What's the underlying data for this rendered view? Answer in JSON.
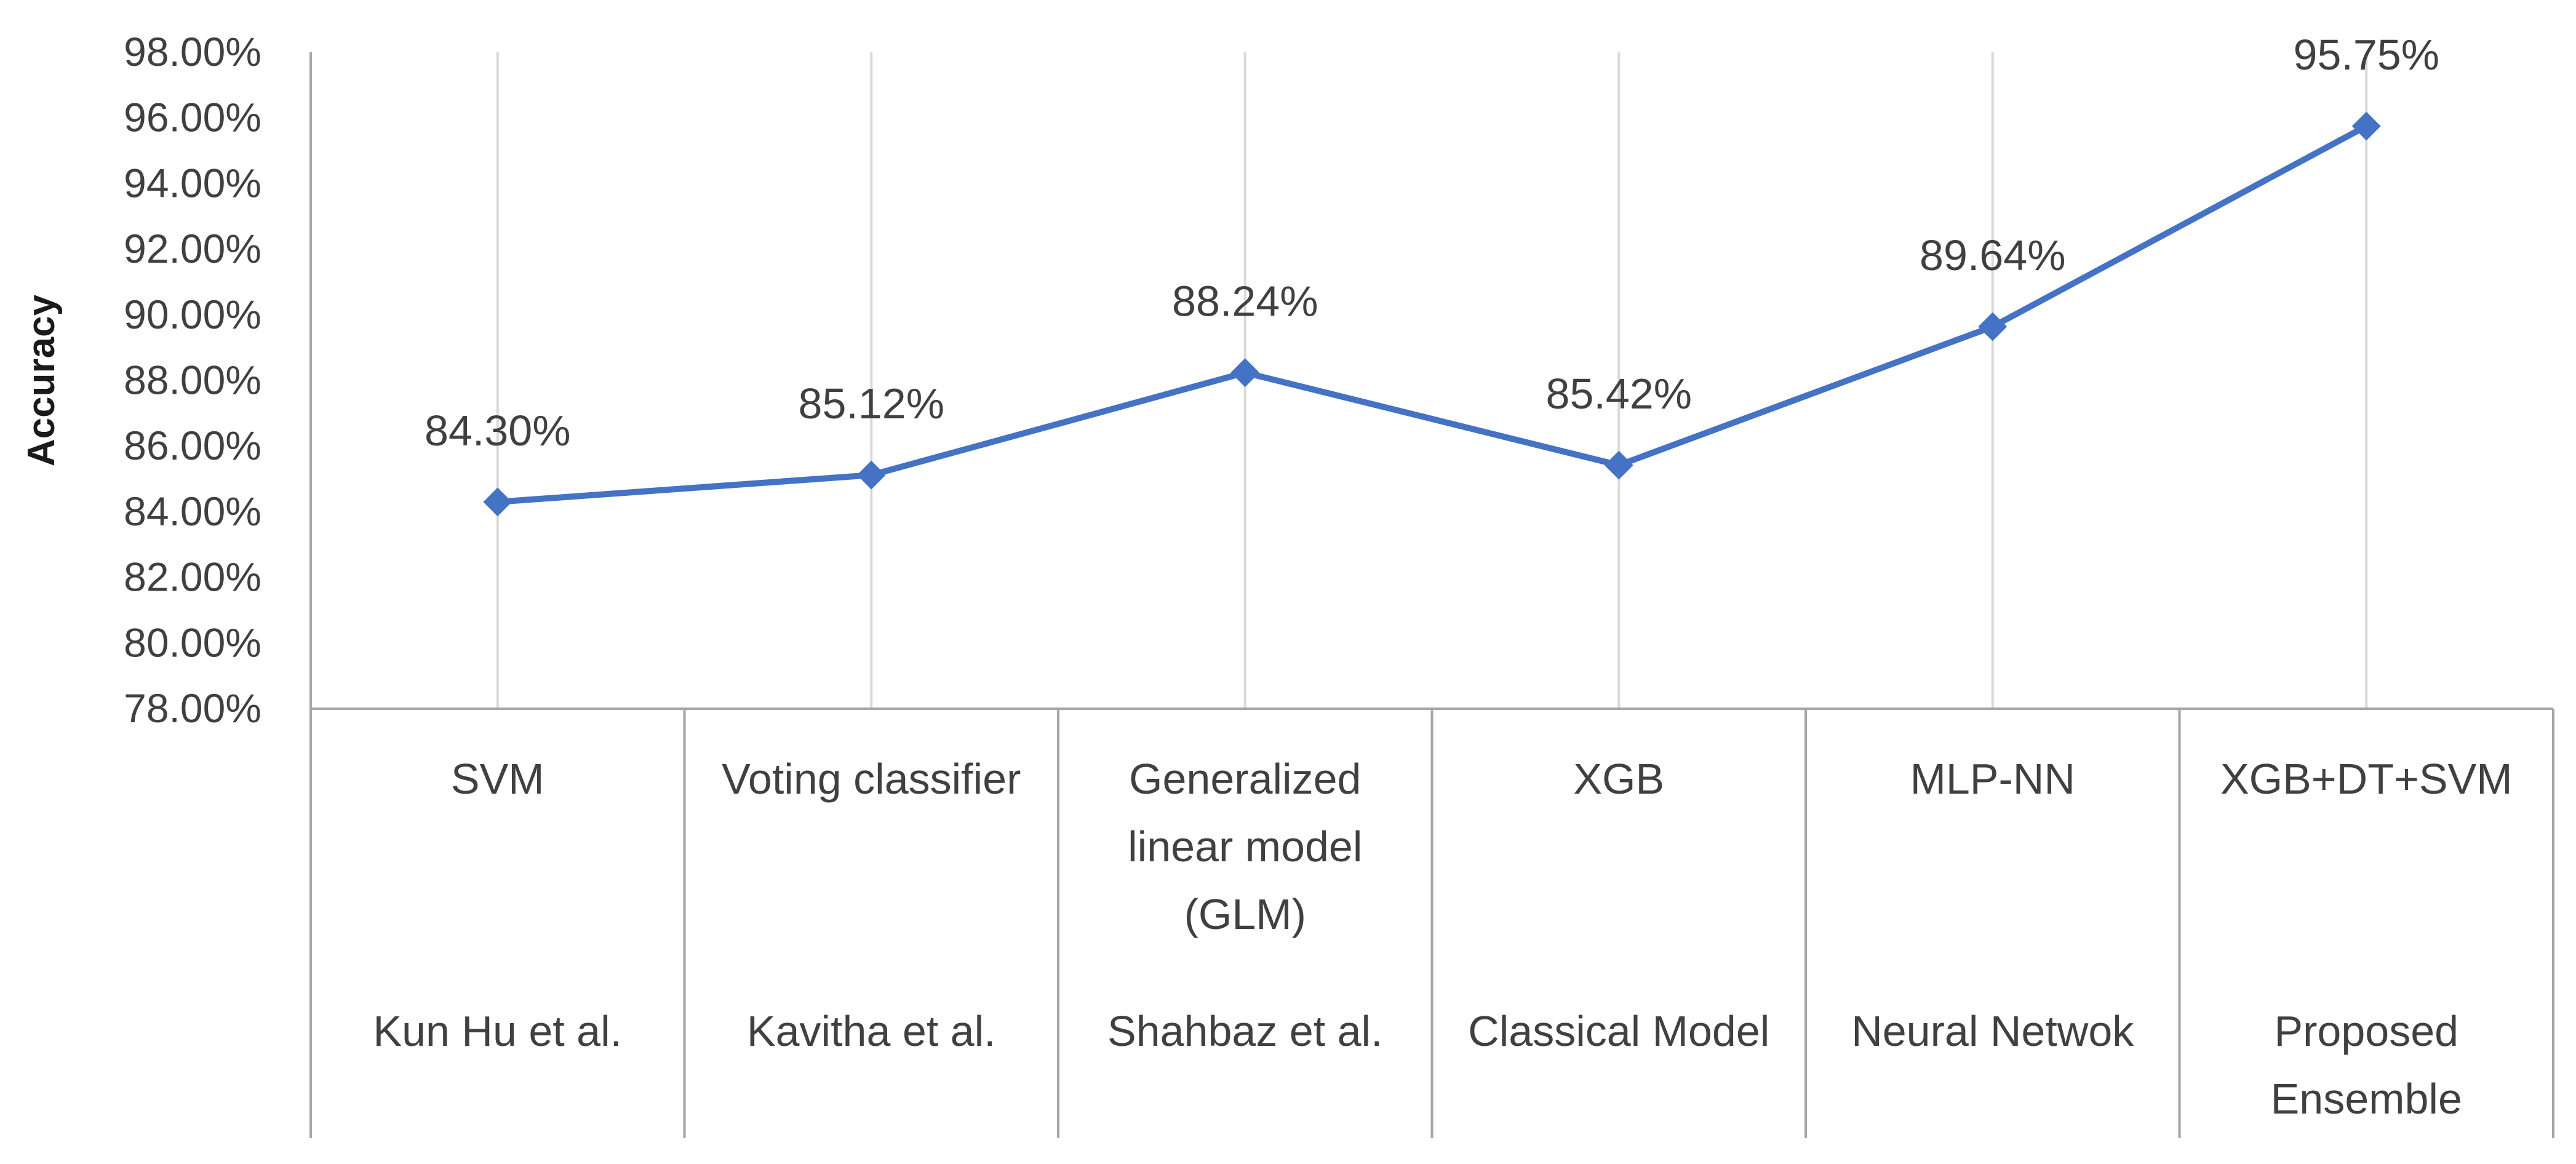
{
  "chart_data": {
    "type": "line",
    "title": "",
    "ylabel": "Accuracy",
    "xlabel": "",
    "ylim": [
      78,
      98
    ],
    "y_step": 2,
    "y_tick_format": "percent_2dp",
    "grid": "vertical",
    "legend": "none",
    "categories": [
      {
        "method": "SVM",
        "source": "Kun Hu et al."
      },
      {
        "method": "Voting classifier",
        "source": "Kavitha et al."
      },
      {
        "method": "Generalized linear model (GLM)",
        "source": "Shahbaz et al."
      },
      {
        "method": "XGB",
        "source": "Classical Model"
      },
      {
        "method": "MLP-NN",
        "source": "Neural Netwok"
      },
      {
        "method": "XGB+DT+SVM",
        "source": "Proposed Ensemble"
      }
    ],
    "series": [
      {
        "values": [
          84.3,
          85.12,
          88.24,
          85.42,
          89.64,
          95.75
        ],
        "data_labels": [
          "84.30%",
          "85.12%",
          "88.24%",
          "85.42%",
          "89.64%",
          "95.75%"
        ],
        "color": "#4472C4",
        "marker": "diamond"
      }
    ],
    "y_ticks": [
      "78.00%",
      "80.00%",
      "82.00%",
      "84.00%",
      "86.00%",
      "88.00%",
      "90.00%",
      "92.00%",
      "94.00%",
      "96.00%",
      "98.00%"
    ],
    "grid_color": "#D9D9D9",
    "axis_color": "#A6A6A6"
  }
}
